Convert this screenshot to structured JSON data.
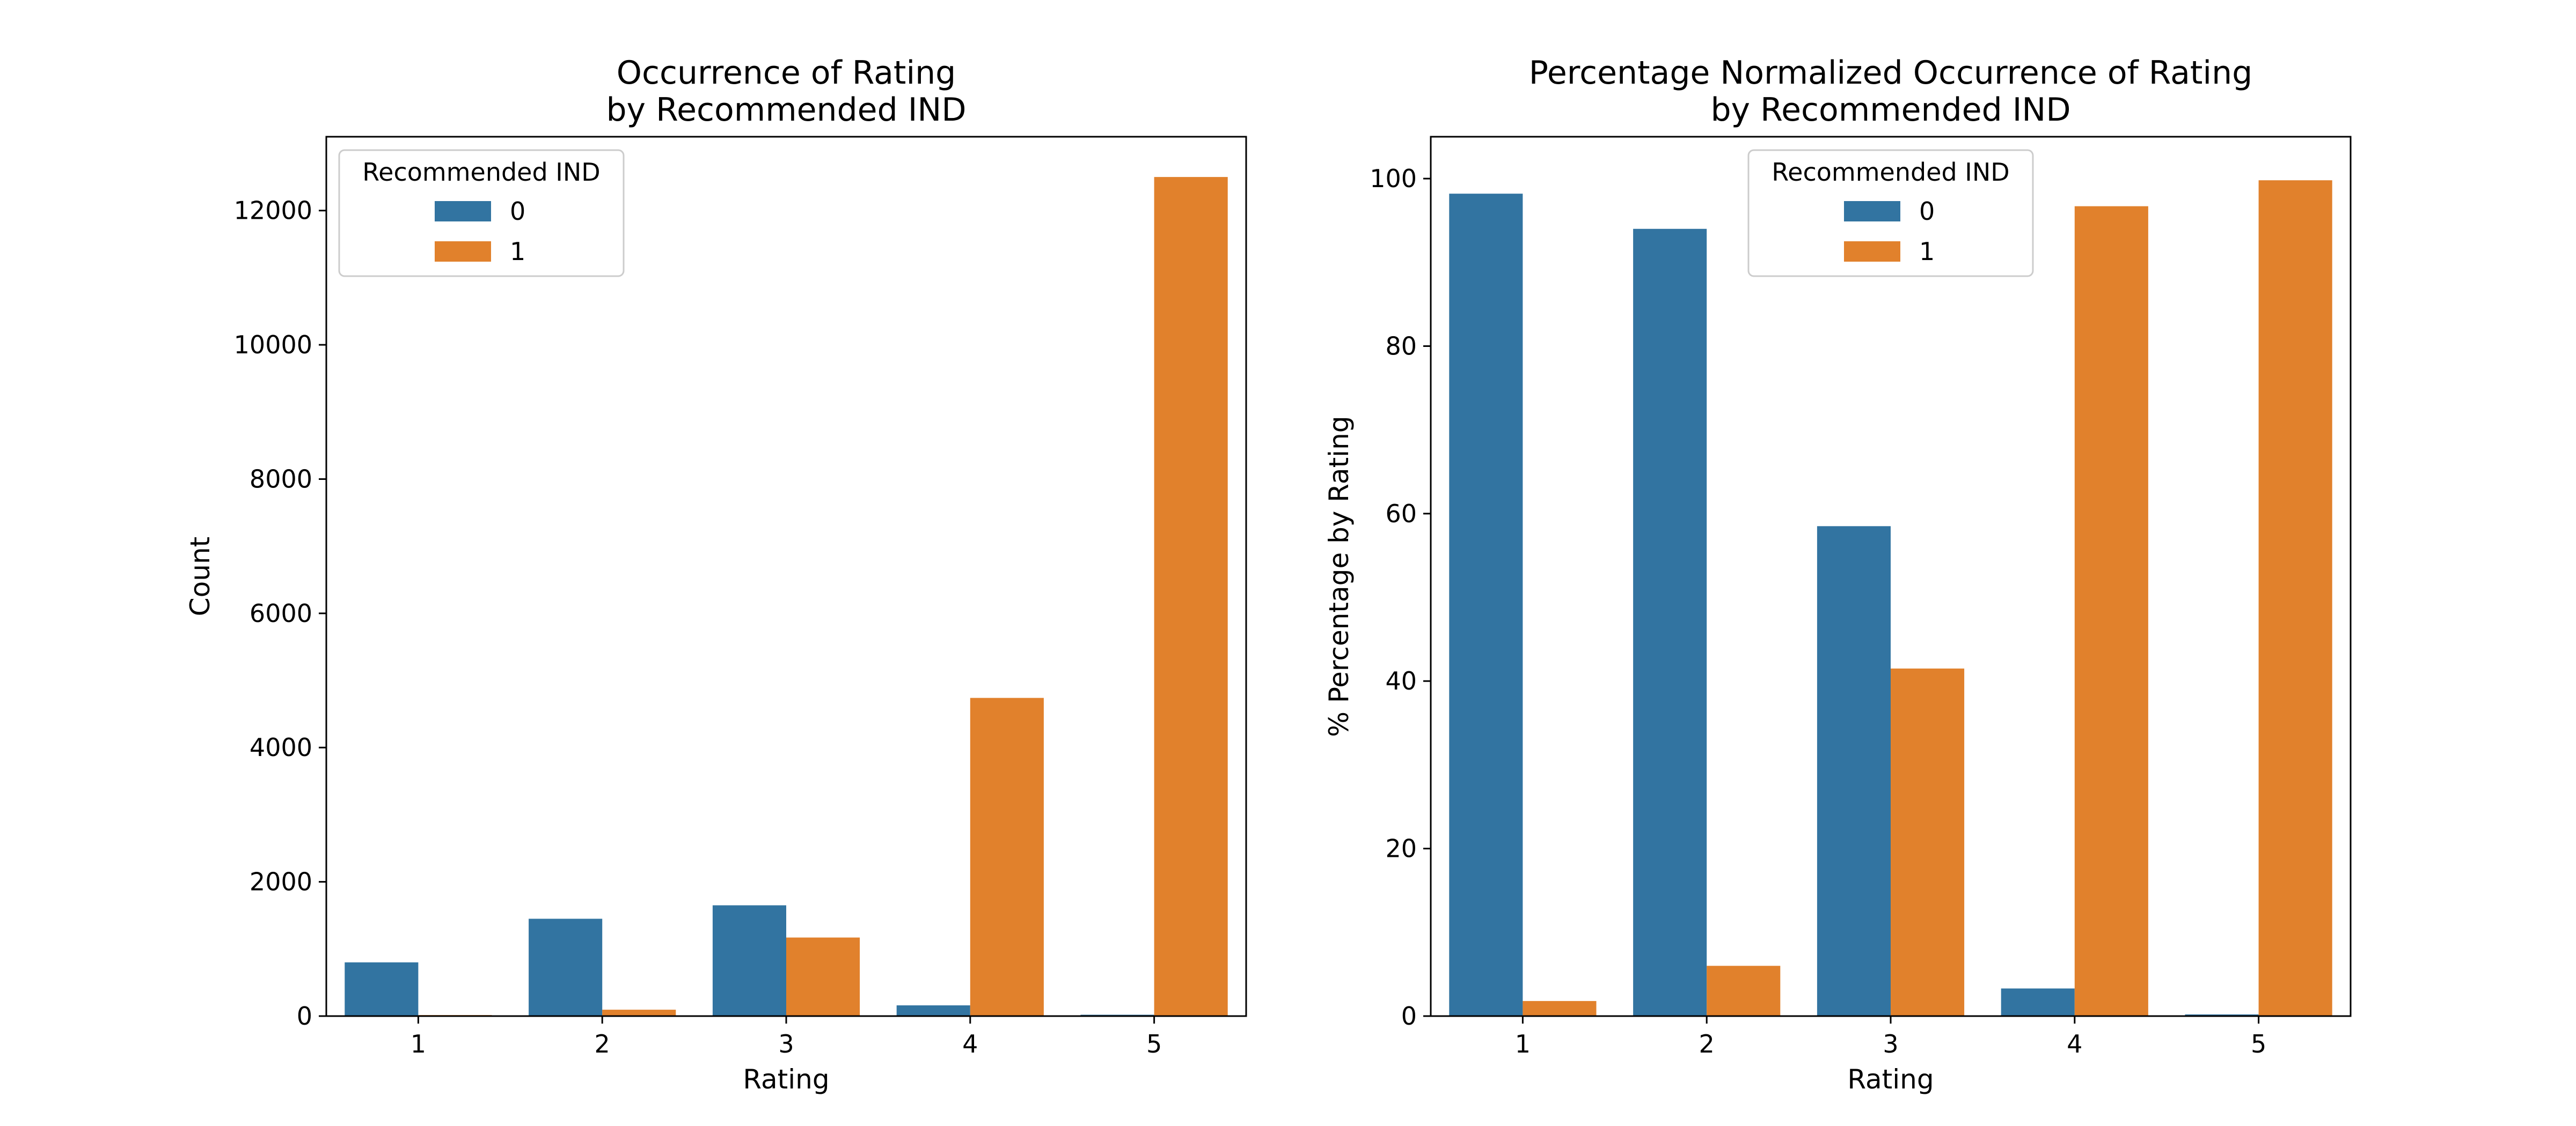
{
  "chart_data": [
    {
      "type": "bar",
      "title": [
        "Occurrence of Rating",
        "by Recommended IND"
      ],
      "xlabel": "Rating",
      "ylabel": "Count",
      "categories": [
        "1",
        "2",
        "3",
        "4",
        "5"
      ],
      "ylim": [
        0,
        13100
      ],
      "yticks": [
        0,
        2000,
        4000,
        6000,
        8000,
        10000,
        12000
      ],
      "grid": false,
      "legend": {
        "title": "Recommended IND",
        "placement": "upper left"
      },
      "series": [
        {
          "name": "0",
          "color": "#3274a1",
          "values": [
            800,
            1450,
            1650,
            160,
            20
          ]
        },
        {
          "name": "1",
          "color": "#e1812c",
          "values": [
            15,
            95,
            1170,
            4740,
            12500
          ]
        }
      ]
    },
    {
      "type": "bar",
      "title": [
        "Percentage Normalized Occurrence of Rating",
        "by Recommended IND"
      ],
      "xlabel": "Rating",
      "ylabel": "% Percentage by Rating",
      "categories": [
        "1",
        "2",
        "3",
        "4",
        "5"
      ],
      "ylim": [
        0,
        105
      ],
      "yticks": [
        0,
        20,
        40,
        60,
        80,
        100
      ],
      "grid": false,
      "legend": {
        "title": "Recommended IND",
        "placement": "upper center"
      },
      "series": [
        {
          "name": "0",
          "color": "#3274a1",
          "values": [
            98.2,
            94.0,
            58.5,
            3.3,
            0.2
          ]
        },
        {
          "name": "1",
          "color": "#e1812c",
          "values": [
            1.8,
            6.0,
            41.5,
            96.7,
            99.8
          ]
        }
      ]
    }
  ]
}
